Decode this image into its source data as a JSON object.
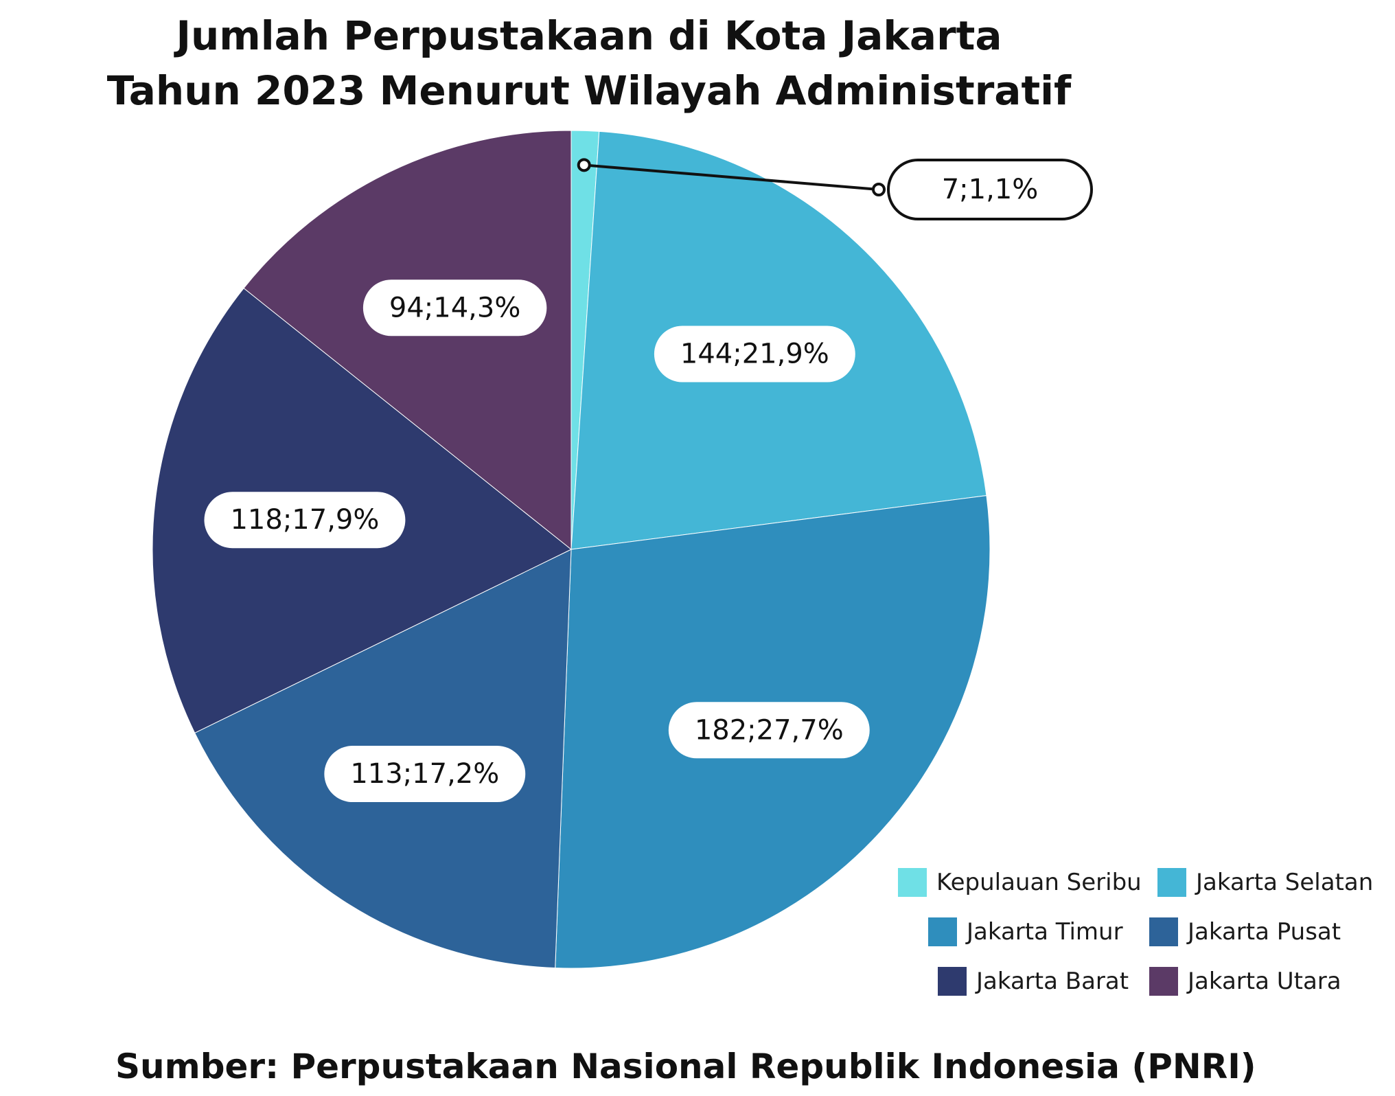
{
  "chart_data": {
    "type": "pie",
    "title": [
      "Jumlah Perpustakaan di Kota Jakarta",
      "Tahun 2023 Menurut Wilayah Administratif"
    ],
    "legend_position": "bottom-right",
    "slices": [
      {
        "name": "Kepulauan Seribu",
        "value": 7,
        "percent_label": "1,1%",
        "label": "7;1,1%",
        "color": "#6fe0e6"
      },
      {
        "name": "Jakarta Selatan",
        "value": 144,
        "percent_label": "21,9%",
        "label": "144;21,9%",
        "color": "#44b6d6"
      },
      {
        "name": "Jakarta Timur",
        "value": 182,
        "percent_label": "27,7%",
        "label": "182;27,7%",
        "color": "#2f8ebd"
      },
      {
        "name": "Jakarta Pusat",
        "value": 113,
        "percent_label": "17,2%",
        "label": "113;17,2%",
        "color": "#2d6399"
      },
      {
        "name": "Jakarta Barat",
        "value": 118,
        "percent_label": "17,9%",
        "label": "118;17,9%",
        "color": "#2e3a6e"
      },
      {
        "name": "Jakarta Utara",
        "value": 94,
        "percent_label": "14,3%",
        "label": "94;14,3%",
        "color": "#5b3a66"
      }
    ]
  },
  "source": "Sumber: Perpustakaan Nasional Republik Indonesia (PNRI)"
}
